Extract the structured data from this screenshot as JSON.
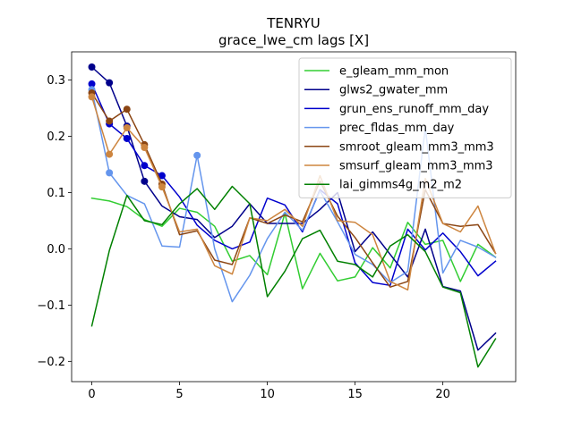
{
  "chart_data": {
    "type": "line",
    "title": "TENRYU",
    "subtitle": "grace_lwe_cm lags [X]",
    "xlabel": "",
    "ylabel": "",
    "xlim": [
      -1.15,
      24.15
    ],
    "ylim": [
      -0.236,
      0.35
    ],
    "x_ticks": [
      0,
      5,
      10,
      15,
      20
    ],
    "y_ticks": [
      -0.2,
      -0.1,
      0.0,
      0.1,
      0.2,
      0.3
    ],
    "y_tick_labels": [
      "−0.2",
      "−0.1",
      "0.0",
      "0.1",
      "0.2",
      "0.3"
    ],
    "grid": false,
    "legend_position": "top-right",
    "x": [
      0,
      1,
      2,
      3,
      4,
      5,
      6,
      7,
      8,
      9,
      10,
      11,
      12,
      13,
      14,
      15,
      16,
      17,
      18,
      19,
      20,
      21,
      22,
      23
    ],
    "series": [
      {
        "name": "e_gleam_mm_mon",
        "color": "#32cd32",
        "values": [
          0.09,
          0.085,
          0.075,
          0.052,
          0.04,
          0.072,
          0.065,
          0.04,
          -0.022,
          -0.012,
          -0.046,
          0.063,
          -0.071,
          -0.008,
          -0.057,
          -0.05,
          0.002,
          -0.034,
          0.047,
          0.008,
          0.015,
          -0.058,
          0.008,
          -0.015
        ],
        "markers": []
      },
      {
        "name": "glws2_gwater_mm",
        "color": "#00008b",
        "values": [
          0.323,
          0.295,
          0.218,
          0.12,
          0.076,
          0.057,
          0.052,
          0.02,
          0.04,
          0.08,
          0.045,
          0.045,
          0.045,
          0.07,
          0.1,
          -0.005,
          0.03,
          -0.01,
          -0.05,
          0.035,
          -0.067,
          -0.075,
          -0.18,
          -0.15
        ],
        "markers": [
          0,
          1,
          2,
          3
        ]
      },
      {
        "name": "grun_ens_runoff_mm_day",
        "color": "#0000cd",
        "values": [
          0.293,
          0.222,
          0.196,
          0.148,
          0.13,
          0.092,
          0.042,
          0.015,
          0.0,
          0.012,
          0.09,
          0.078,
          0.03,
          0.105,
          0.08,
          -0.025,
          -0.06,
          -0.065,
          0.035,
          -0.002,
          0.028,
          -0.005,
          -0.048,
          -0.022
        ],
        "markers": [
          0,
          1,
          2,
          3,
          4
        ]
      },
      {
        "name": "prec_fldas_mm_day",
        "color": "#6495ed",
        "values": [
          0.283,
          0.135,
          0.095,
          0.08,
          0.005,
          0.003,
          0.166,
          0.0,
          -0.094,
          -0.047,
          0.018,
          0.065,
          0.033,
          0.103,
          0.048,
          -0.01,
          -0.028,
          -0.06,
          -0.04,
          0.215,
          -0.043,
          0.015,
          0.003,
          -0.015
        ],
        "markers": [
          0,
          1,
          6
        ]
      },
      {
        "name": "smroot_gleam_mm3_mm3",
        "color": "#8b4513",
        "values": [
          0.277,
          0.227,
          0.248,
          0.185,
          0.115,
          0.025,
          0.032,
          -0.02,
          -0.028,
          0.055,
          0.045,
          0.06,
          0.048,
          0.12,
          0.058,
          0.02,
          -0.025,
          -0.068,
          -0.058,
          0.105,
          0.045,
          0.04,
          0.043,
          -0.008
        ],
        "markers": [
          0,
          1,
          2,
          3,
          4
        ]
      },
      {
        "name": "smsurf_gleam_mm3_mm3",
        "color": "#cd853f",
        "values": [
          0.27,
          0.168,
          0.215,
          0.18,
          0.11,
          0.03,
          0.035,
          -0.03,
          -0.045,
          0.055,
          0.05,
          0.07,
          0.04,
          0.13,
          0.05,
          0.047,
          0.025,
          -0.058,
          -0.073,
          0.125,
          0.045,
          0.03,
          0.076,
          -0.008
        ],
        "markers": [
          0,
          1,
          2,
          3,
          4
        ]
      },
      {
        "name": "lai_gimms4g_m2_m2",
        "color": "#008000",
        "values": [
          -0.137,
          -0.003,
          0.095,
          0.05,
          0.043,
          0.08,
          0.107,
          0.07,
          0.111,
          0.08,
          -0.085,
          -0.04,
          0.018,
          0.033,
          -0.022,
          -0.028,
          -0.05,
          0.005,
          0.025,
          -0.005,
          -0.068,
          -0.078,
          -0.21,
          -0.16
        ],
        "markers": []
      }
    ]
  }
}
